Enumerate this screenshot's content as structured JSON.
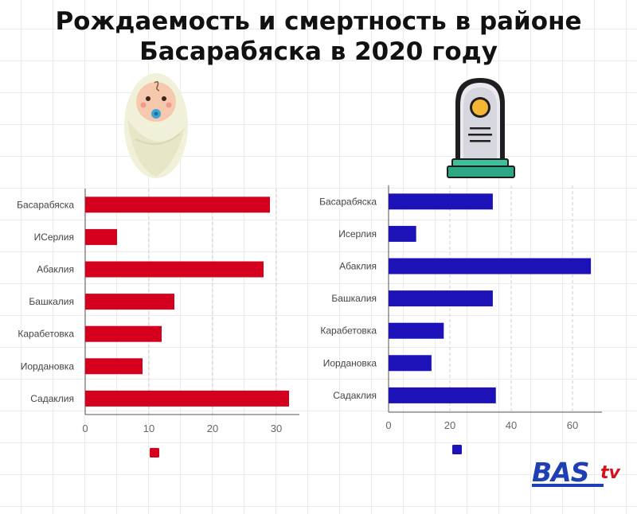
{
  "title": "Рождаемость и смертность в районе Басарабяска в 2020 году",
  "colors": {
    "births": "#d4001e",
    "deaths": "#1c12b8",
    "grid": "#cfcfcf"
  },
  "icons": {
    "births": "swaddled-baby-icon",
    "deaths": "tombstone-icon"
  },
  "logo": {
    "main": "BAS",
    "suffix": "tv"
  },
  "chart_data": [
    {
      "type": "bar",
      "orientation": "horizontal",
      "categories": [
        "Басарабяска",
        "ИСерлия",
        "Абаклия",
        "Башкалия",
        "Карабетовка",
        "Иордановка",
        "Садаклия"
      ],
      "values": [
        29,
        5,
        28,
        14,
        12,
        9,
        32
      ],
      "xlim": [
        0,
        33
      ],
      "xticks": [
        0,
        10,
        20,
        30
      ],
      "color": "#d4001e",
      "grid": "vertical dashed",
      "legend": "bottom"
    },
    {
      "type": "bar",
      "orientation": "horizontal",
      "categories": [
        "Басарабяска",
        "Иcерлия",
        "Абаклия",
        "Башкалия",
        "Карабетовка",
        "Иордановка",
        "Садаклия"
      ],
      "values": [
        34,
        9,
        66,
        34,
        18,
        14,
        35
      ],
      "xlim": [
        0,
        70
      ],
      "xticks": [
        0,
        20,
        40,
        60
      ],
      "color": "#1c12b8",
      "grid": "vertical dashed",
      "legend": "bottom"
    }
  ]
}
